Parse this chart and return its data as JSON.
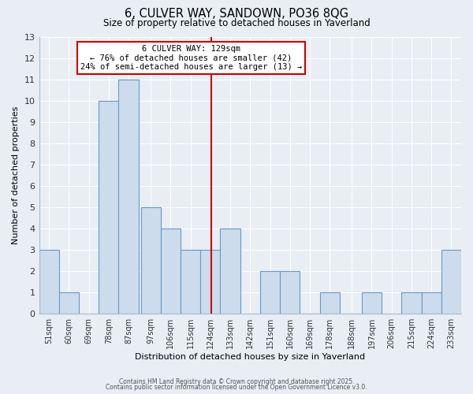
{
  "title": "6, CULVER WAY, SANDOWN, PO36 8QG",
  "subtitle": "Size of property relative to detached houses in Yaverland",
  "xlabel": "Distribution of detached houses by size in Yaverland",
  "ylabel": "Number of detached properties",
  "bar_color": "#ccdcec",
  "bar_edge_color": "#6699cc",
  "background_color": "#e8eef4",
  "plot_bg_color": "#e8eef4",
  "grid_color": "#ffffff",
  "bins": [
    "51sqm",
    "60sqm",
    "69sqm",
    "78sqm",
    "87sqm",
    "97sqm",
    "106sqm",
    "115sqm",
    "124sqm",
    "133sqm",
    "142sqm",
    "151sqm",
    "160sqm",
    "169sqm",
    "178sqm",
    "188sqm",
    "197sqm",
    "206sqm",
    "215sqm",
    "224sqm",
    "233sqm"
  ],
  "counts": [
    3,
    1,
    0,
    10,
    11,
    5,
    4,
    3,
    3,
    4,
    0,
    2,
    2,
    0,
    1,
    0,
    1,
    0,
    1,
    1,
    3
  ],
  "bin_starts": [
    51,
    60,
    69,
    78,
    87,
    97,
    106,
    115,
    124,
    133,
    142,
    151,
    160,
    169,
    178,
    188,
    197,
    206,
    215,
    224,
    233
  ],
  "bin_width": 9,
  "property_size": 129,
  "vline_color": "#cc0000",
  "annotation_title": "6 CULVER WAY: 129sqm",
  "annotation_line1": "← 76% of detached houses are smaller (42)",
  "annotation_line2": "24% of semi-detached houses are larger (13) →",
  "annotation_box_color": "#ffffff",
  "annotation_box_edge": "#cc0000",
  "ylim": [
    0,
    13
  ],
  "yticks": [
    0,
    1,
    2,
    3,
    4,
    5,
    6,
    7,
    8,
    9,
    10,
    11,
    12,
    13
  ],
  "footer1": "Contains HM Land Registry data © Crown copyright and database right 2025.",
  "footer2": "Contains public sector information licensed under the Open Government Licence v3.0."
}
